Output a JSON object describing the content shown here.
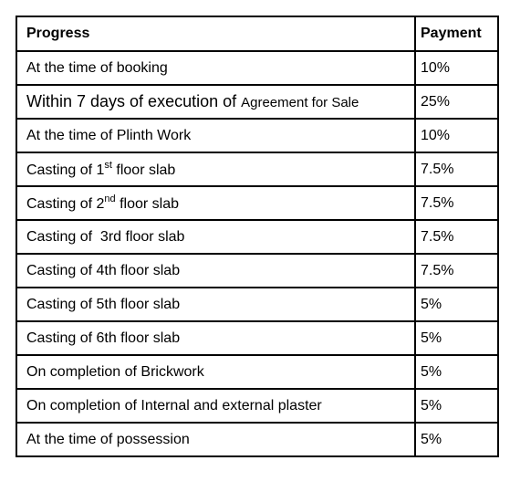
{
  "table": {
    "header": [
      "Progress",
      "Payment"
    ],
    "rows": [
      [
        [
          {
            "text": "At the time of booking"
          }
        ],
        "10%"
      ],
      [
        [
          {
            "text": "Within 7 days of execution of ",
            "format": "large"
          },
          {
            "text": "Agreement for Sale",
            "format": "small"
          }
        ],
        "25%"
      ],
      [
        [
          {
            "text": "At the time of Plinth Work"
          }
        ],
        "10%"
      ],
      [
        [
          {
            "text": "Casting of 1"
          },
          {
            "text": "st",
            "format": "sup"
          },
          {
            "text": " floor slab"
          }
        ],
        "7.5%"
      ],
      [
        [
          {
            "text": "Casting of 2"
          },
          {
            "text": "nd",
            "format": "sup"
          },
          {
            "text": " floor slab"
          }
        ],
        "7.5%"
      ],
      [
        [
          {
            "text": "Casting of  3rd floor slab"
          }
        ],
        "7.5%"
      ],
      [
        [
          {
            "text": "Casting of 4th floor slab"
          }
        ],
        "7.5%"
      ],
      [
        [
          {
            "text": "Casting of 5th floor slab"
          }
        ],
        "5%"
      ],
      [
        [
          {
            "text": "Casting of 6th floor slab"
          }
        ],
        "5%"
      ],
      [
        [
          {
            "text": "On completion of Brickwork"
          }
        ],
        "5%"
      ],
      [
        [
          {
            "text": "On completion of Internal and external plaster"
          }
        ],
        "5%"
      ],
      [
        [
          {
            "text": "At the time of possession"
          }
        ],
        "5%"
      ]
    ]
  }
}
